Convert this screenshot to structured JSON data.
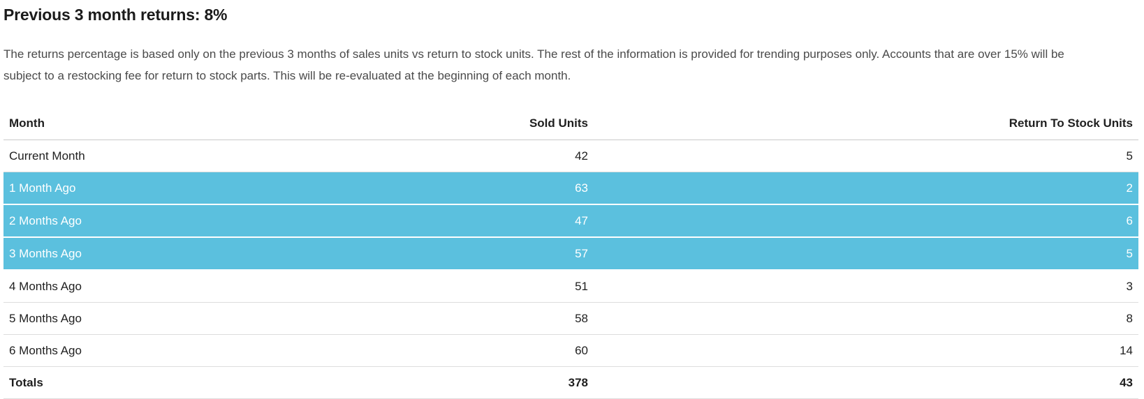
{
  "page": {
    "title": "Previous 3 month returns: 8%",
    "description": "The returns percentage is based only on the previous 3 months of sales units vs return to stock units. The rest of the information is provided for trending purposes only. Accounts that are over 15% will be subject to a restocking fee for return to stock parts. This will be re-evaluated at the beginning of each month."
  },
  "colors": {
    "highlight_background": "#5bc0de",
    "highlight_text": "#ffffff"
  },
  "table": {
    "columns": [
      {
        "label": "Month",
        "align": "left"
      },
      {
        "label": "Sold Units",
        "align": "right"
      },
      {
        "label": "Return To Stock Units",
        "align": "right"
      }
    ],
    "rows": [
      {
        "month": "Current Month",
        "sold": "42",
        "returns": "5",
        "highlighted": false
      },
      {
        "month": "1 Month Ago",
        "sold": "63",
        "returns": "2",
        "highlighted": true
      },
      {
        "month": "2 Months Ago",
        "sold": "47",
        "returns": "6",
        "highlighted": true
      },
      {
        "month": "3 Months Ago",
        "sold": "57",
        "returns": "5",
        "highlighted": true
      },
      {
        "month": "4 Months Ago",
        "sold": "51",
        "returns": "3",
        "highlighted": false
      },
      {
        "month": "5 Months Ago",
        "sold": "58",
        "returns": "8",
        "highlighted": false
      },
      {
        "month": "6 Months Ago",
        "sold": "60",
        "returns": "14",
        "highlighted": false
      }
    ],
    "totals": {
      "label": "Totals",
      "sold": "378",
      "returns": "43"
    }
  }
}
